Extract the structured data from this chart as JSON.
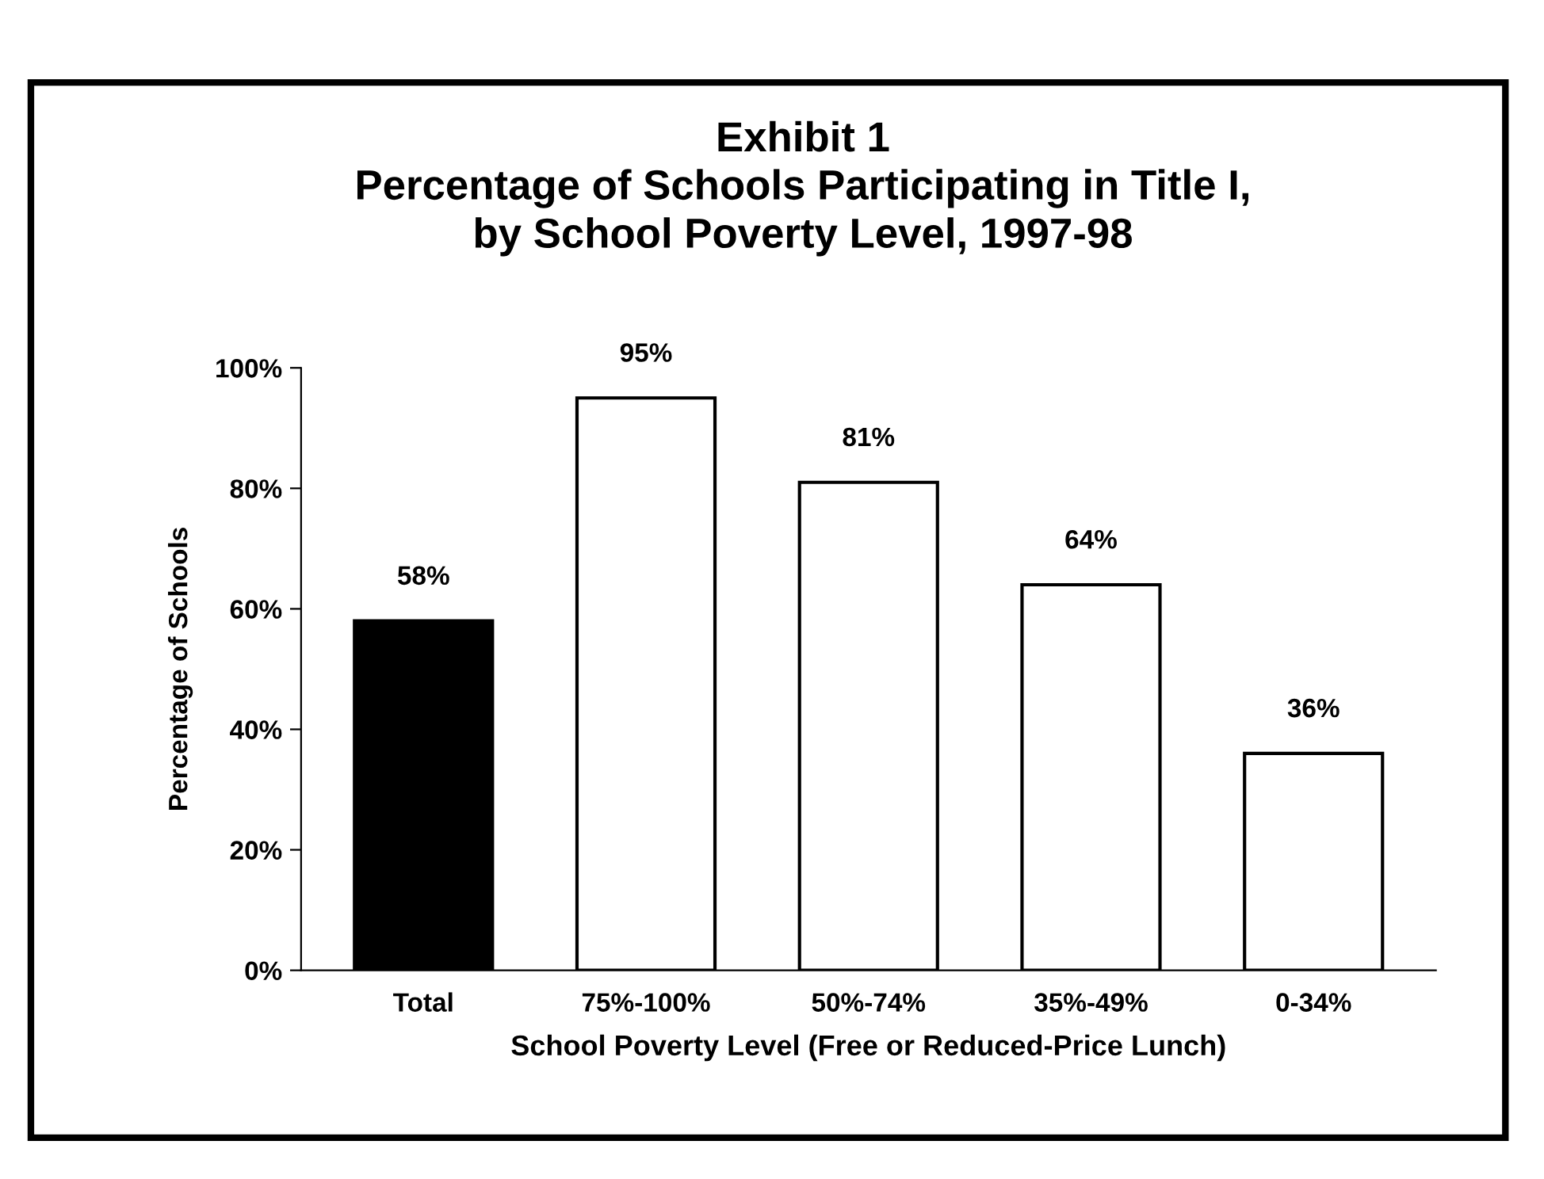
{
  "chart_data": {
    "type": "bar",
    "title": "Exhibit 1\nPercentage of Schools Participating in Title I,\nby School Poverty Level, 1997-98",
    "xlabel": "School Poverty Level (Free or Reduced-Price Lunch)",
    "ylabel": "Percentage of Schools",
    "categories": [
      "Total",
      "75%-100%",
      "50%-74%",
      "35%-49%",
      "0-34%"
    ],
    "values": [
      58,
      95,
      81,
      64,
      36
    ],
    "colors": [
      "#000000",
      "#ffffff",
      "#ffffff",
      "#ffffff",
      "#ffffff"
    ],
    "value_labels": [
      "58%",
      "95%",
      "81%",
      "64%",
      "36%"
    ],
    "ylim": [
      0,
      100
    ],
    "yticks": [
      {
        "value": 0,
        "label": "0%"
      },
      {
        "value": 20,
        "label": "20%"
      },
      {
        "value": 40,
        "label": "40%"
      },
      {
        "value": 60,
        "label": "60%"
      },
      {
        "value": 80,
        "label": "80%"
      },
      {
        "value": 100,
        "label": "100%"
      }
    ],
    "grid": false,
    "legend": false
  }
}
